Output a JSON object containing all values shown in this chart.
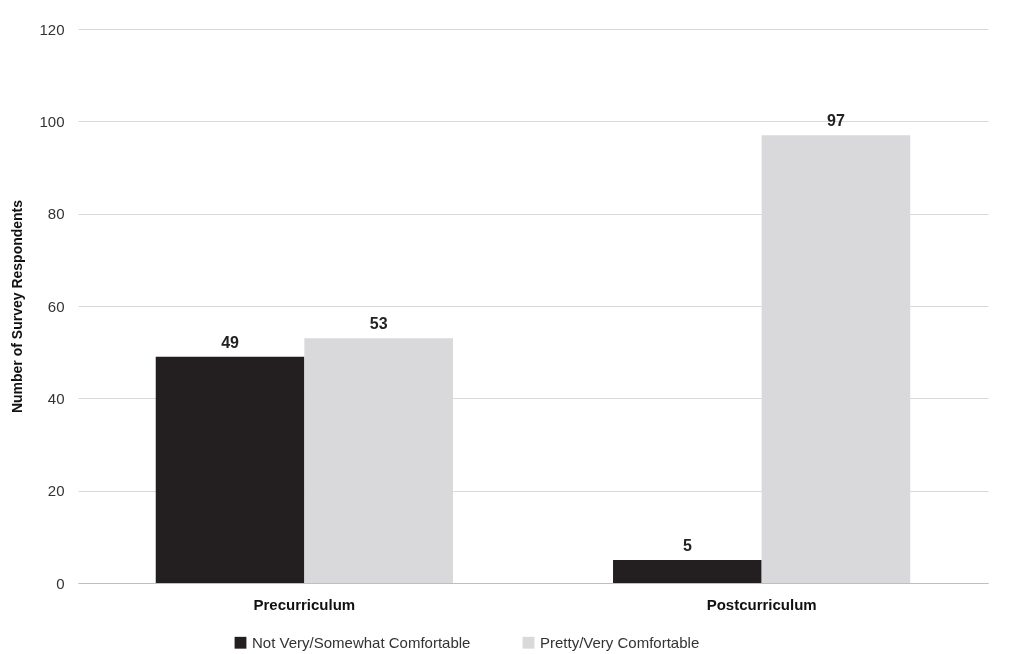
{
  "chart_data": {
    "type": "bar",
    "ylabel": "Number of Survey Respondents",
    "categories": [
      "Precurriculum",
      "Postcurriculum"
    ],
    "series": [
      {
        "name": "Not Very/Somewhat Comfortable",
        "color": "#231f20",
        "values": [
          49,
          5
        ]
      },
      {
        "name": "Pretty/Very Comfortable",
        "color": "#d9d9db",
        "values": [
          53,
          97
        ]
      }
    ],
    "ylim": [
      0,
      120
    ],
    "yticks": [
      0,
      20,
      40,
      60,
      80,
      100,
      120
    ],
    "grid": "y",
    "legend": "bottom",
    "data_labels": true
  }
}
